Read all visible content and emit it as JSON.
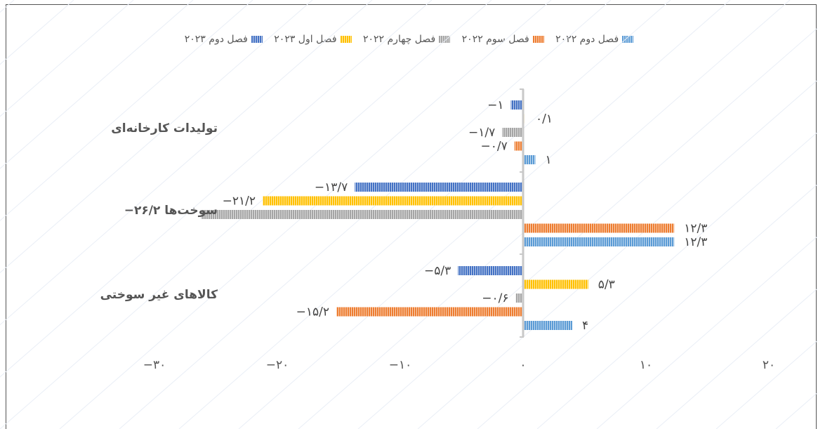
{
  "chart_data": {
    "type": "bar",
    "orientation": "horizontal",
    "categories": [
      "تولیدات کارخانه‌ای",
      "سوخت‌ها",
      "کالاهای غیر سوختی"
    ],
    "category_labels": [
      "تولیدات کارخانه‌ای",
      "−۲۶/۲  سوخت‌ها",
      "کالاهای غیر سوختی"
    ],
    "series": [
      {
        "name": "فصل دوم ۲۰۲۲",
        "color": "#5b9bd5",
        "values": [
          1,
          12.3,
          4
        ],
        "labels": [
          "۱",
          "۱۲/۳",
          "۴"
        ]
      },
      {
        "name": "فصل سوم ۲۰۲۲",
        "color": "#ed7d31",
        "values": [
          -0.7,
          12.3,
          -15.2
        ],
        "labels": [
          "−۰/۷",
          "۱۲/۳",
          "−۱۵/۲"
        ]
      },
      {
        "name": "فصل چهارم ۲۰۲۲",
        "color": "#a5a5a5",
        "values": [
          -1.7,
          -26.2,
          -0.6
        ],
        "labels": [
          "−۱/۷",
          "",
          "−۰/۶"
        ]
      },
      {
        "name": "فصل اول ۲۰۲۳",
        "color": "#ffc000",
        "values": [
          0.1,
          -21.2,
          5.3
        ],
        "labels": [
          "۰/۱",
          "−۲۱/۲",
          "۵/۳"
        ]
      },
      {
        "name": "فصل دوم ۲۰۲۳",
        "color": "#4472c4",
        "values": [
          -1,
          -13.7,
          -5.3
        ],
        "labels": [
          "−۱",
          "−۱۳/۷",
          "−۵/۳"
        ]
      }
    ],
    "xlim": [
      -30,
      20
    ],
    "xticks": [
      -30,
      -20,
      -10,
      0,
      10,
      20
    ],
    "xtick_labels": [
      "−۳۰",
      "−۲۰",
      "−۱۰",
      "۰",
      "۱۰",
      "۲۰"
    ],
    "legend_position": "top",
    "grid": false
  }
}
